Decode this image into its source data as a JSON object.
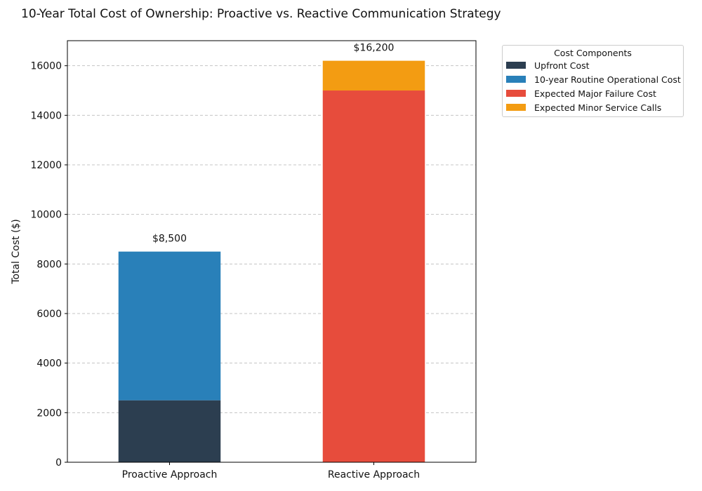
{
  "chart_data": {
    "type": "bar",
    "stacked": true,
    "title": "10-Year Total Cost of Ownership: Proactive vs. Reactive Communication Strategy",
    "xlabel": "",
    "ylabel": "Total Cost ($)",
    "categories": [
      "Proactive Approach",
      "Reactive Approach"
    ],
    "series": [
      {
        "name": "Upfront Cost",
        "values": [
          2500,
          0
        ],
        "color": "#2c3e50"
      },
      {
        "name": "10-year Routine Operational Cost",
        "values": [
          6000,
          0
        ],
        "color": "#2980b9"
      },
      {
        "name": "Expected Major Failure Cost",
        "values": [
          0,
          15000
        ],
        "color": "#e74c3c"
      },
      {
        "name": "Expected Minor Service Calls",
        "values": [
          0,
          1200
        ],
        "color": "#f39c12"
      }
    ],
    "totals_labels": [
      "$8,500",
      "$16,200"
    ],
    "ylim": [
      0,
      17010
    ],
    "yticks": [
      0,
      2000,
      4000,
      6000,
      8000,
      10000,
      12000,
      14000,
      16000
    ],
    "grid": "y dashed",
    "legend_title": "Cost Components",
    "legend_position": "outside top-right"
  }
}
